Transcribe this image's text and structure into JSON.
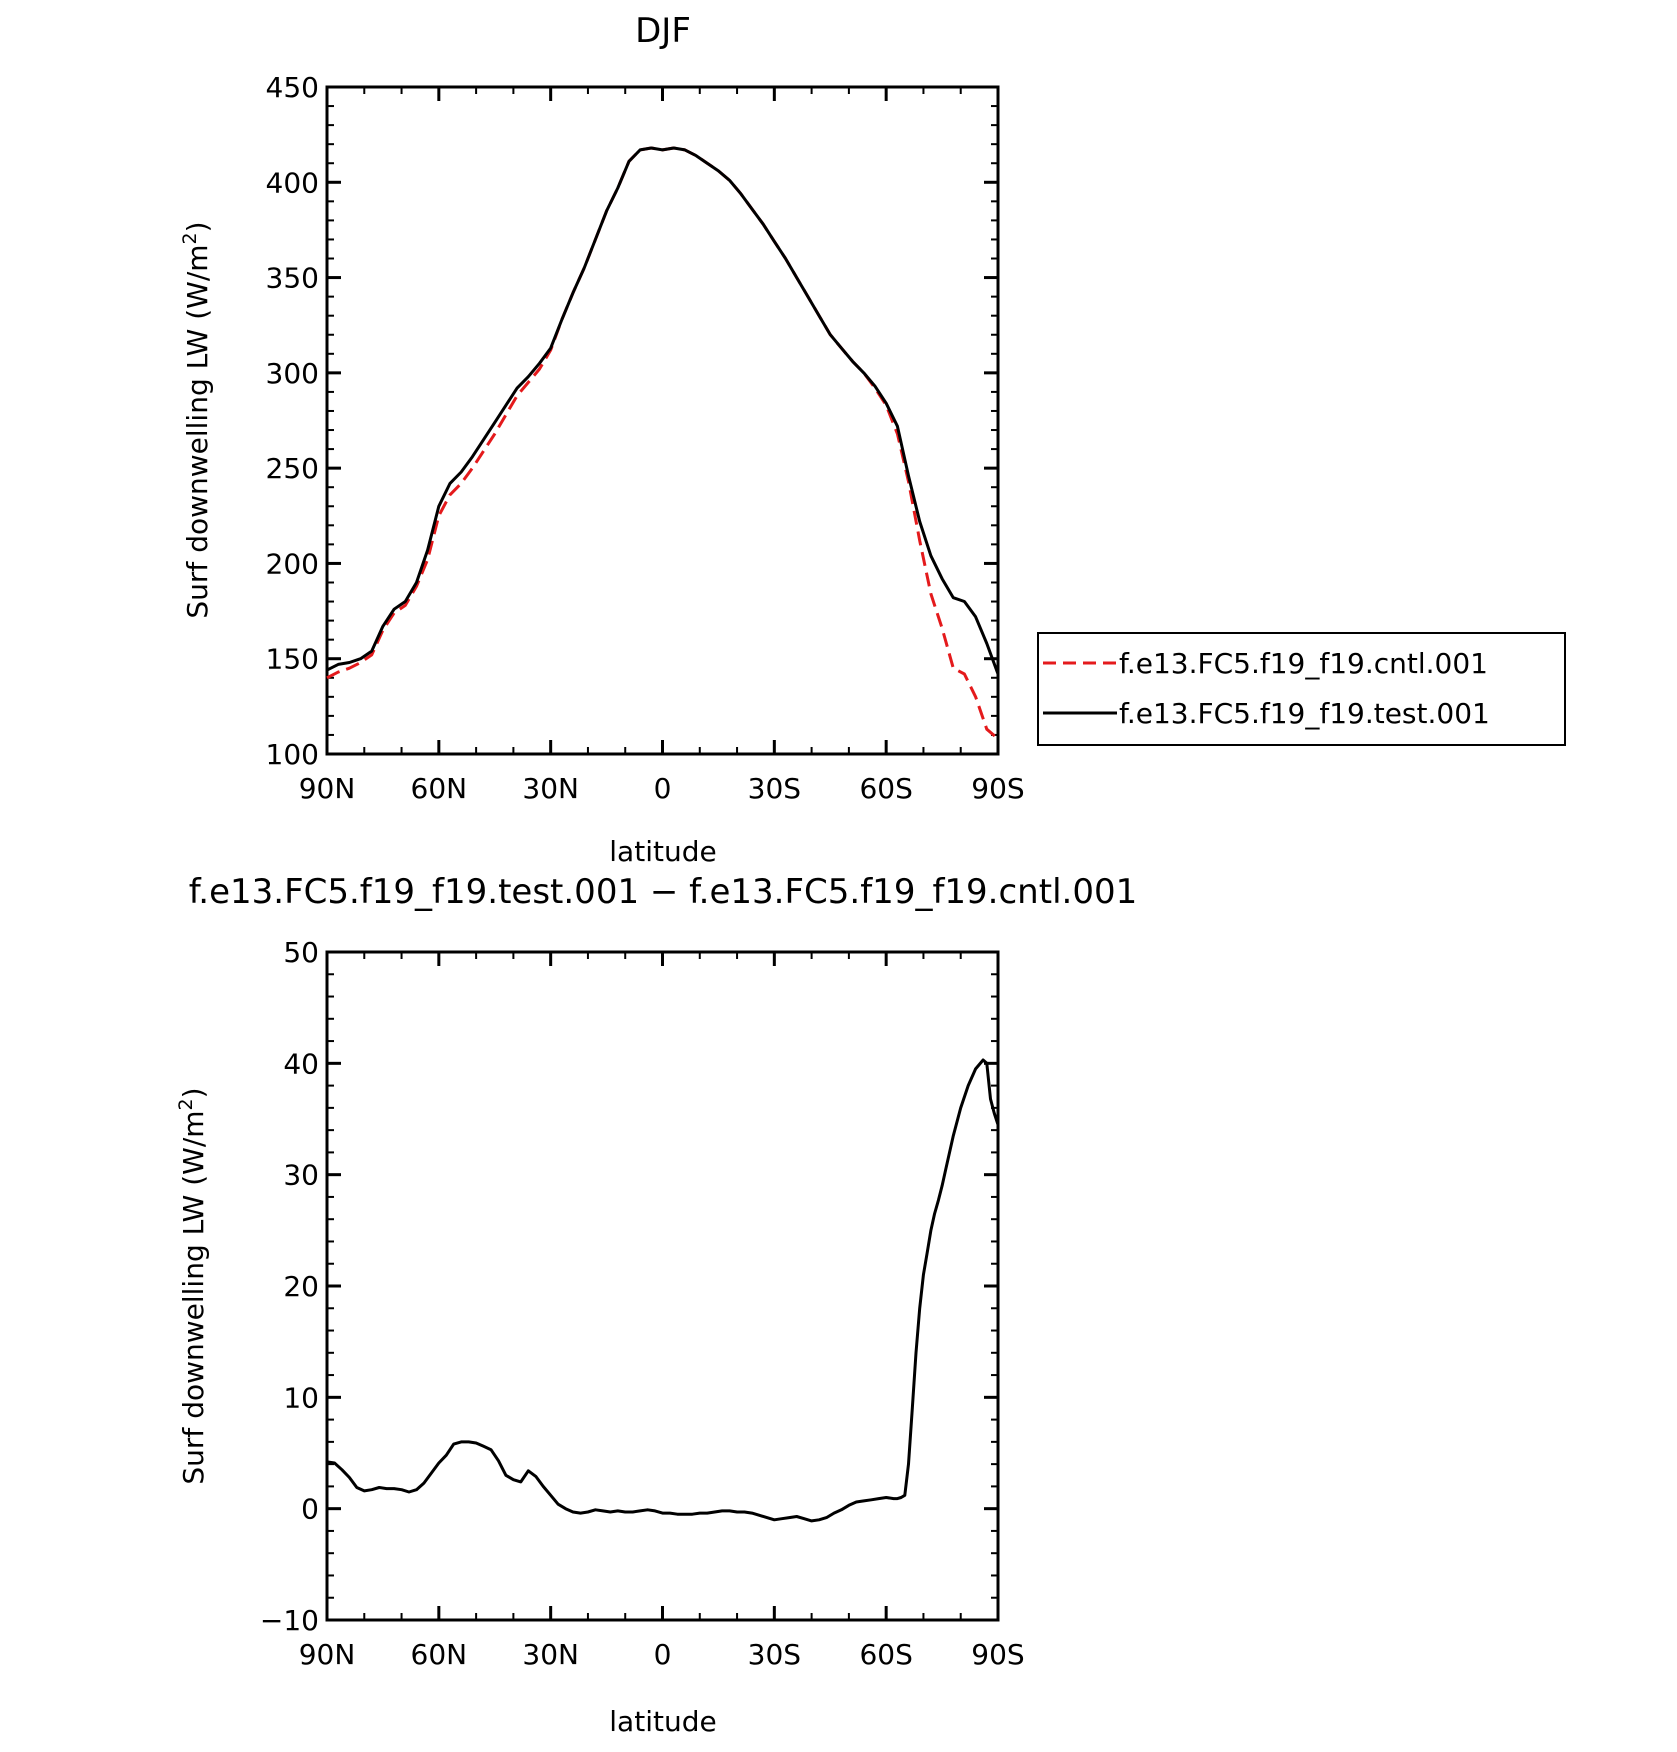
{
  "chart_data": [
    {
      "type": "line",
      "title": "DJF",
      "xlabel": "latitude",
      "ylabel": "Surf downwelling LW (W/m²)",
      "ylabel_base": "Surf downwelling LW (W/m",
      "ylabel_sup": "2",
      "ylabel_end": ")",
      "xlim": [
        90,
        -90
      ],
      "ylim": [
        100,
        450
      ],
      "xticks": [
        90,
        60,
        30,
        0,
        -30,
        -60,
        -90
      ],
      "xtick_labels": [
        "90N",
        "60N",
        "30N",
        "0",
        "30S",
        "60S",
        "90S"
      ],
      "yticks": [
        100,
        150,
        200,
        250,
        300,
        350,
        400,
        450
      ],
      "ytick_labels": [
        "100",
        "150",
        "200",
        "250",
        "300",
        "350",
        "400",
        "450"
      ],
      "legend_position": "right",
      "series": [
        {
          "name": "f.e13.FC5.f19_f19.cntl.001",
          "color": "#e41a1c",
          "dash": "dashed",
          "x": [
            90,
            87,
            84,
            81,
            78,
            75,
            72,
            69,
            66,
            63,
            60,
            57,
            54,
            51,
            48,
            45,
            42,
            39,
            36,
            33,
            30,
            27,
            24,
            21,
            18,
            15,
            12,
            9,
            6,
            3,
            0,
            -3,
            -6,
            -9,
            -12,
            -15,
            -18,
            -21,
            -24,
            -27,
            -30,
            -33,
            -36,
            -39,
            -42,
            -45,
            -48,
            -51,
            -54,
            -57,
            -60,
            -63,
            -66,
            -69,
            -72,
            -75,
            -78,
            -81,
            -84,
            -87,
            -90
          ],
          "y": [
            140,
            143,
            145,
            148,
            152,
            165,
            174,
            178,
            188,
            202,
            225,
            236,
            242,
            250,
            259,
            268,
            278,
            288,
            295,
            302,
            312,
            328,
            342,
            355,
            370,
            385,
            397,
            411,
            417,
            418,
            417,
            418,
            417,
            414,
            410,
            406,
            401,
            394,
            386,
            378,
            369,
            360,
            350,
            340,
            330,
            320,
            313,
            306,
            300,
            292,
            283,
            268,
            243,
            212,
            184,
            166,
            145,
            142,
            130,
            113,
            108
          ]
        },
        {
          "name": "f.e13.FC5.f19_f19.test.001",
          "color": "#000000",
          "dash": "solid",
          "x": [
            90,
            87,
            84,
            81,
            78,
            75,
            72,
            69,
            66,
            63,
            60,
            57,
            54,
            51,
            48,
            45,
            42,
            39,
            36,
            33,
            30,
            27,
            24,
            21,
            18,
            15,
            12,
            9,
            6,
            3,
            0,
            -3,
            -6,
            -9,
            -12,
            -15,
            -18,
            -21,
            -24,
            -27,
            -30,
            -33,
            -36,
            -39,
            -42,
            -45,
            -48,
            -51,
            -54,
            -57,
            -60,
            -63,
            -66,
            -69,
            -72,
            -75,
            -78,
            -81,
            -84,
            -87,
            -90
          ],
          "y": [
            144,
            147,
            148,
            150,
            154,
            167,
            176,
            180,
            190,
            207,
            230,
            242,
            248,
            256,
            265,
            274,
            283,
            292,
            298,
            305,
            313,
            328,
            342,
            355,
            370,
            385,
            397,
            411,
            417,
            418,
            417,
            418,
            417,
            414,
            410,
            406,
            401,
            394,
            386,
            378,
            369,
            360,
            350,
            340,
            330,
            320,
            313,
            306,
            300,
            293,
            284,
            272,
            246,
            222,
            204,
            192,
            182,
            180,
            172,
            158,
            142
          ]
        }
      ]
    },
    {
      "type": "line",
      "title": "f.e13.FC5.f19_f19.test.001 − f.e13.FC5.f19_f19.cntl.001",
      "xlabel": "latitude",
      "ylabel": "Surf downwelling LW (W/m²)",
      "ylabel_base": "Surf downwelling LW (W/m",
      "ylabel_sup": "2",
      "ylabel_end": ")",
      "xlim": [
        90,
        -90
      ],
      "ylim": [
        -10,
        50
      ],
      "xticks": [
        90,
        60,
        30,
        0,
        -30,
        -60,
        -90
      ],
      "xtick_labels": [
        "90N",
        "60N",
        "30N",
        "0",
        "30S",
        "60S",
        "90S"
      ],
      "yticks": [
        -10,
        0,
        10,
        20,
        30,
        40,
        50
      ],
      "ytick_labels": [
        "−10",
        "0",
        "10",
        "20",
        "30",
        "40",
        "50"
      ],
      "series": [
        {
          "color": "#000000",
          "dash": "solid",
          "x": [
            90,
            88,
            86,
            84,
            82,
            80,
            78,
            76,
            74,
            72,
            70,
            68,
            66,
            64,
            62,
            60,
            58,
            56,
            54,
            52,
            50,
            48,
            46,
            44,
            42,
            40,
            38,
            36,
            34,
            32,
            30,
            28,
            26,
            24,
            22,
            20,
            18,
            16,
            14,
            12,
            10,
            8,
            6,
            4,
            2,
            0,
            -2,
            -4,
            -6,
            -8,
            -10,
            -12,
            -14,
            -16,
            -18,
            -20,
            -22,
            -24,
            -26,
            -28,
            -30,
            -32,
            -34,
            -36,
            -38,
            -40,
            -42,
            -44,
            -46,
            -48,
            -50,
            -52,
            -54,
            -56,
            -58,
            -60,
            -62,
            -63,
            -64,
            -65,
            -66,
            -67,
            -68,
            -69,
            -70,
            -71,
            -72,
            -73,
            -74,
            -75,
            -76,
            -78,
            -80,
            -82,
            -84,
            -86,
            -87,
            -88,
            -89,
            -90
          ],
          "y": [
            4.2,
            4.1,
            3.5,
            2.8,
            1.9,
            1.6,
            1.7,
            1.9,
            1.8,
            1.8,
            1.7,
            1.5,
            1.7,
            2.3,
            3.2,
            4.1,
            4.8,
            5.8,
            6.0,
            6.0,
            5.9,
            5.6,
            5.3,
            4.3,
            3.0,
            2.6,
            2.4,
            3.4,
            2.9,
            2.0,
            1.2,
            0.4,
            0.0,
            -0.3,
            -0.4,
            -0.3,
            -0.1,
            -0.2,
            -0.3,
            -0.2,
            -0.3,
            -0.3,
            -0.2,
            -0.1,
            -0.2,
            -0.4,
            -0.4,
            -0.5,
            -0.5,
            -0.5,
            -0.4,
            -0.4,
            -0.3,
            -0.2,
            -0.2,
            -0.3,
            -0.3,
            -0.4,
            -0.6,
            -0.8,
            -1.0,
            -0.9,
            -0.8,
            -0.7,
            -0.9,
            -1.1,
            -1.0,
            -0.8,
            -0.4,
            -0.1,
            0.3,
            0.6,
            0.7,
            0.8,
            0.9,
            1.0,
            0.9,
            0.9,
            1.0,
            1.2,
            4.0,
            9.0,
            14.0,
            18.0,
            21.0,
            23.0,
            25.0,
            26.5,
            27.7,
            29.0,
            30.5,
            33.5,
            36.0,
            38.0,
            39.5,
            40.3,
            40.0,
            36.8,
            35.5,
            34.5
          ]
        }
      ]
    }
  ]
}
